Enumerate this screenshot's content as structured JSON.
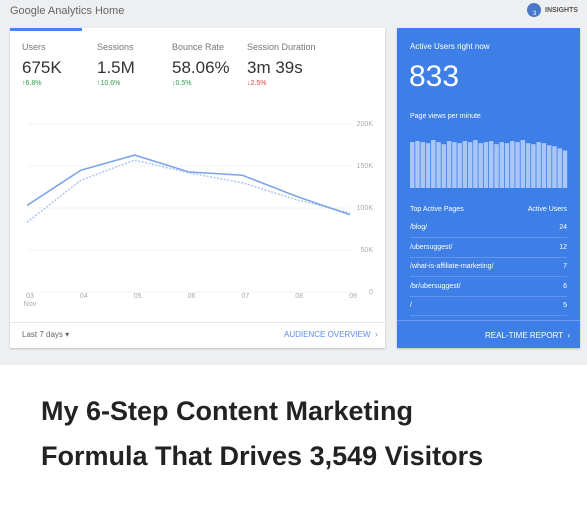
{
  "header": {
    "title": "Google Analytics Home",
    "insights": "INSIGHTS",
    "insights_badge": "3"
  },
  "metrics": [
    {
      "label": "Users",
      "value": "675K",
      "change": "↑6.8%"
    },
    {
      "label": "Sessions",
      "value": "1.5M",
      "change": "↑10.6%"
    },
    {
      "label": "Bounce Rate",
      "value": "58.06%",
      "change": "↓0.5%"
    },
    {
      "label": "Session Duration",
      "value": "3m 39s",
      "change": "↓2.5%"
    }
  ],
  "chart_data": {
    "type": "line",
    "categories": [
      "03",
      "04",
      "05",
      "06",
      "07",
      "08",
      "09"
    ],
    "month_label": "Nov",
    "series": [
      {
        "color": "#7ea4ea",
        "values": [
          103000,
          145000,
          163000,
          143000,
          139000,
          114000,
          92000
        ]
      },
      {
        "color": "#b3c8f0",
        "dashed": true,
        "values": [
          83000,
          133000,
          157000,
          142000,
          130000,
          110000,
          94000
        ]
      }
    ],
    "ylim": [
      0,
      200000
    ],
    "yticks": [
      0,
      {
        "value": 50000,
        "label": "50K"
      },
      {
        "value": 100000,
        "label": "100K"
      },
      {
        "value": 150000,
        "label": "150K"
      },
      {
        "value": 200000,
        "label": "200K"
      }
    ],
    "grid": true
  },
  "footer": {
    "range": "Last 7 days",
    "link": "AUDIENCE OVERVIEW"
  },
  "realtime": {
    "title": "Active Users right now",
    "count": 833,
    "pageviews_label": "Page views per minute",
    "pageviews": [
      44,
      45,
      44,
      43,
      46,
      44,
      42,
      45,
      44,
      43,
      45,
      44,
      46,
      43,
      44,
      45,
      42,
      44,
      43,
      45,
      44,
      46,
      43,
      42,
      44,
      43,
      41,
      40,
      38,
      36
    ],
    "table": {
      "headers": [
        "Top Active Pages",
        "Active Users"
      ],
      "rows": [
        [
          "/blog/",
          24
        ],
        [
          "/ubersuggest/",
          12
        ],
        [
          "/what-is-affiliate-marketing/",
          7
        ],
        [
          "/br/ubersuggest/",
          6
        ],
        [
          "/",
          5
        ]
      ]
    },
    "link": "REAL-TIME REPORT"
  },
  "article_title": [
    "My 6-Step Content Marketing",
    "Formula That Drives 3,549 Visitors"
  ]
}
